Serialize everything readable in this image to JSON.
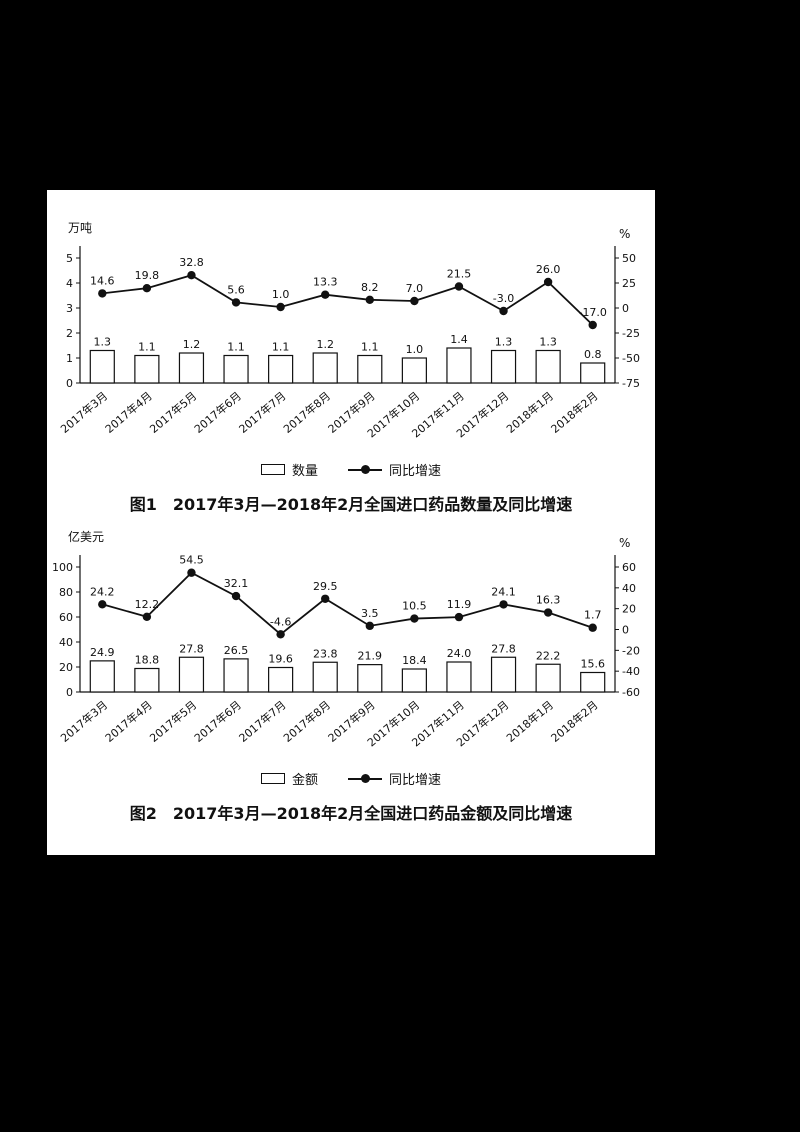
{
  "page": {
    "background": "#000000",
    "panel_background": "#ffffff",
    "ink": "#111111"
  },
  "chart_data": [
    {
      "type": "bar",
      "title": "图1　2017年3月—2018年2月全国进口药品数量及同比增速",
      "unit_left": "万吨",
      "unit_right": "%",
      "legend_bar": "数量",
      "legend_line": "同比增速",
      "categories": [
        "2017年3月",
        "2017年4月",
        "2017年5月",
        "2017年6月",
        "2017年7月",
        "2017年8月",
        "2017年9月",
        "2017年10月",
        "2017年11月",
        "2017年12月",
        "2018年1月",
        "2018年2月"
      ],
      "left_range": [
        0,
        5
      ],
      "left_ticks": [
        0,
        1,
        2,
        3,
        4,
        5
      ],
      "right_range": [
        -75,
        50
      ],
      "right_ticks": [
        50,
        25,
        0,
        -25,
        -50,
        -75
      ],
      "grid": false,
      "legend_position": "bottom",
      "series": [
        {
          "name": "数量",
          "kind": "bar",
          "axis": "left",
          "values": [
            1.3,
            1.1,
            1.2,
            1.1,
            1.1,
            1.2,
            1.1,
            1.0,
            1.4,
            1.3,
            1.3,
            0.8
          ]
        },
        {
          "name": "同比增速",
          "kind": "line",
          "axis": "right",
          "values": [
            14.6,
            19.8,
            32.8,
            5.6,
            1.0,
            13.3,
            8.2,
            7.0,
            21.5,
            -3.0,
            26.0,
            -17.0
          ]
        }
      ]
    },
    {
      "type": "bar",
      "title": "图2　2017年3月—2018年2月全国进口药品金额及同比增速",
      "unit_left": "亿美元",
      "unit_right": "%",
      "legend_bar": "金额",
      "legend_line": "同比增速",
      "categories": [
        "2017年3月",
        "2017年4月",
        "2017年5月",
        "2017年6月",
        "2017年7月",
        "2017年8月",
        "2017年9月",
        "2017年10月",
        "2017年11月",
        "2017年12月",
        "2018年1月",
        "2018年2月"
      ],
      "left_range": [
        0,
        100
      ],
      "left_ticks": [
        0,
        20,
        40,
        60,
        80,
        100
      ],
      "right_range": [
        -60,
        60
      ],
      "right_ticks": [
        60,
        40,
        20,
        0,
        -20,
        -40,
        -60
      ],
      "grid": false,
      "legend_position": "bottom",
      "series": [
        {
          "name": "金额",
          "kind": "bar",
          "axis": "left",
          "values": [
            24.9,
            18.8,
            27.8,
            26.5,
            19.6,
            23.8,
            21.9,
            18.4,
            24.0,
            27.8,
            22.2,
            15.6
          ]
        },
        {
          "name": "同比增速",
          "kind": "line",
          "axis": "right",
          "values": [
            24.2,
            12.2,
            54.5,
            32.1,
            -4.6,
            29.5,
            3.5,
            10.5,
            11.9,
            24.1,
            16.3,
            1.7
          ]
        }
      ]
    }
  ]
}
